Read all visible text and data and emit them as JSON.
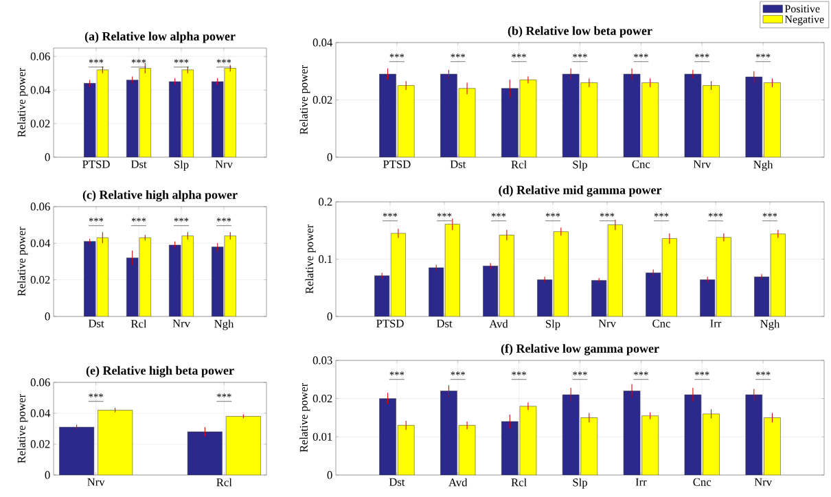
{
  "chart_data": [
    {
      "type": "bar",
      "title": "(a) Relative low alpha power",
      "ylabel": "Relative power",
      "categories": [
        "PTSD",
        "Dst",
        "Slp",
        "Nrv"
      ],
      "series": [
        {
          "color": "#2b2a8c",
          "values": [
            0.044,
            0.046,
            0.045,
            0.045
          ],
          "errors": [
            0.002,
            0.002,
            0.002,
            0.002
          ]
        },
        {
          "color": "#ffff00",
          "values": [
            0.052,
            0.053,
            0.052,
            0.053
          ],
          "errors": [
            0.002,
            0.003,
            0.002,
            0.002
          ]
        }
      ],
      "ylim": [
        0,
        0.065
      ],
      "yticks": [
        0,
        0.02,
        0.04,
        0.06
      ],
      "grid": true,
      "annotations": [
        "***",
        "***",
        "***",
        "***"
      ]
    },
    {
      "type": "bar",
      "title": "(b) Relative low beta power",
      "ylabel": "Relative power",
      "categories": [
        "PTSD",
        "Dst",
        "Rcl",
        "Slp",
        "Cnc",
        "Nrv",
        "Ngh"
      ],
      "series": [
        {
          "name": "Positive",
          "color": "#2b2a8c",
          "values": [
            0.029,
            0.029,
            0.024,
            0.029,
            0.029,
            0.029,
            0.028
          ],
          "errors": [
            0.002,
            0.0015,
            0.003,
            0.002,
            0.002,
            0.0015,
            0.002
          ]
        },
        {
          "name": "Negative",
          "color": "#ffff00",
          "values": [
            0.025,
            0.024,
            0.027,
            0.026,
            0.026,
            0.025,
            0.026
          ],
          "errors": [
            0.0015,
            0.002,
            0.0012,
            0.0015,
            0.0015,
            0.0015,
            0.0015
          ]
        }
      ],
      "ylim": [
        0,
        0.04
      ],
      "yticks": [
        0,
        0.02,
        0.04
      ],
      "grid": true,
      "legend": "top right",
      "annotations": [
        "***",
        "***",
        "***",
        "***",
        "***",
        "***",
        "***"
      ]
    },
    {
      "type": "bar",
      "title": "(c) Relative high alpha power",
      "ylabel": "Relative power",
      "categories": [
        "Dst",
        "Rcl",
        "Nrv",
        "Ngh"
      ],
      "series": [
        {
          "color": "#2b2a8c",
          "values": [
            0.041,
            0.032,
            0.039,
            0.038
          ],
          "errors": [
            0.0015,
            0.004,
            0.002,
            0.002
          ]
        },
        {
          "color": "#ffff00",
          "values": [
            0.043,
            0.043,
            0.044,
            0.044
          ],
          "errors": [
            0.003,
            0.0015,
            0.002,
            0.002
          ]
        }
      ],
      "ylim": [
        0,
        0.06
      ],
      "yticks": [
        0,
        0.02,
        0.04,
        0.06
      ],
      "grid": true,
      "annotations": [
        "***",
        "***",
        "***",
        "***"
      ]
    },
    {
      "type": "bar",
      "title": "(d) Relative mid gamma power",
      "ylabel": "Relative power",
      "categories": [
        "PTSD",
        "Dst",
        "Avd",
        "Slp",
        "Nrv",
        "Cnc",
        "Irr",
        "Ngh"
      ],
      "series": [
        {
          "color": "#2b2a8c",
          "values": [
            0.071,
            0.085,
            0.088,
            0.064,
            0.063,
            0.076,
            0.064,
            0.069
          ],
          "errors": [
            0.005,
            0.005,
            0.005,
            0.005,
            0.004,
            0.006,
            0.005,
            0.005
          ]
        },
        {
          "color": "#ffff00",
          "values": [
            0.145,
            0.161,
            0.142,
            0.148,
            0.16,
            0.136,
            0.138,
            0.144
          ],
          "errors": [
            0.008,
            0.01,
            0.009,
            0.007,
            0.009,
            0.009,
            0.007,
            0.007
          ]
        }
      ],
      "ylim": [
        0,
        0.2
      ],
      "yticks": [
        0,
        0.1,
        0.2
      ],
      "grid": true,
      "annotations": [
        "***",
        "***",
        "***",
        "***",
        "***",
        "***",
        "***",
        "***"
      ]
    },
    {
      "type": "bar",
      "title": "(e) Relative high beta power",
      "ylabel": "Relative power",
      "categories": [
        "Nrv",
        "Rcl"
      ],
      "series": [
        {
          "color": "#2b2a8c",
          "values": [
            0.031,
            0.028
          ],
          "errors": [
            0.0015,
            0.003
          ]
        },
        {
          "color": "#ffff00",
          "values": [
            0.042,
            0.038
          ],
          "errors": [
            0.0015,
            0.0012
          ]
        }
      ],
      "ylim": [
        0,
        0.06
      ],
      "yticks": [
        0,
        0.02,
        0.04,
        0.06
      ],
      "grid": true,
      "annotations": [
        "***",
        "***"
      ]
    },
    {
      "type": "bar",
      "title": "(f) Relative low gamma power",
      "ylabel": "Relative power",
      "categories": [
        "Dst",
        "Avd",
        "Rcl",
        "Slp",
        "Irr",
        "Cnc",
        "Nrv"
      ],
      "series": [
        {
          "color": "#2b2a8c",
          "values": [
            0.02,
            0.022,
            0.014,
            0.021,
            0.022,
            0.021,
            0.021
          ],
          "errors": [
            0.0015,
            0.0015,
            0.0018,
            0.0018,
            0.0018,
            0.0018,
            0.0015
          ]
        },
        {
          "color": "#ffff00",
          "values": [
            0.013,
            0.013,
            0.018,
            0.015,
            0.0155,
            0.016,
            0.015
          ],
          "errors": [
            0.0012,
            0.001,
            0.001,
            0.0012,
            0.0009,
            0.0012,
            0.0012
          ]
        }
      ],
      "ylim": [
        0,
        0.03
      ],
      "yticks": [
        0,
        0.01,
        0.02,
        0.03
      ],
      "grid": true,
      "annotations": [
        "***",
        "***",
        "***",
        "***",
        "***",
        "***",
        "***"
      ]
    }
  ]
}
